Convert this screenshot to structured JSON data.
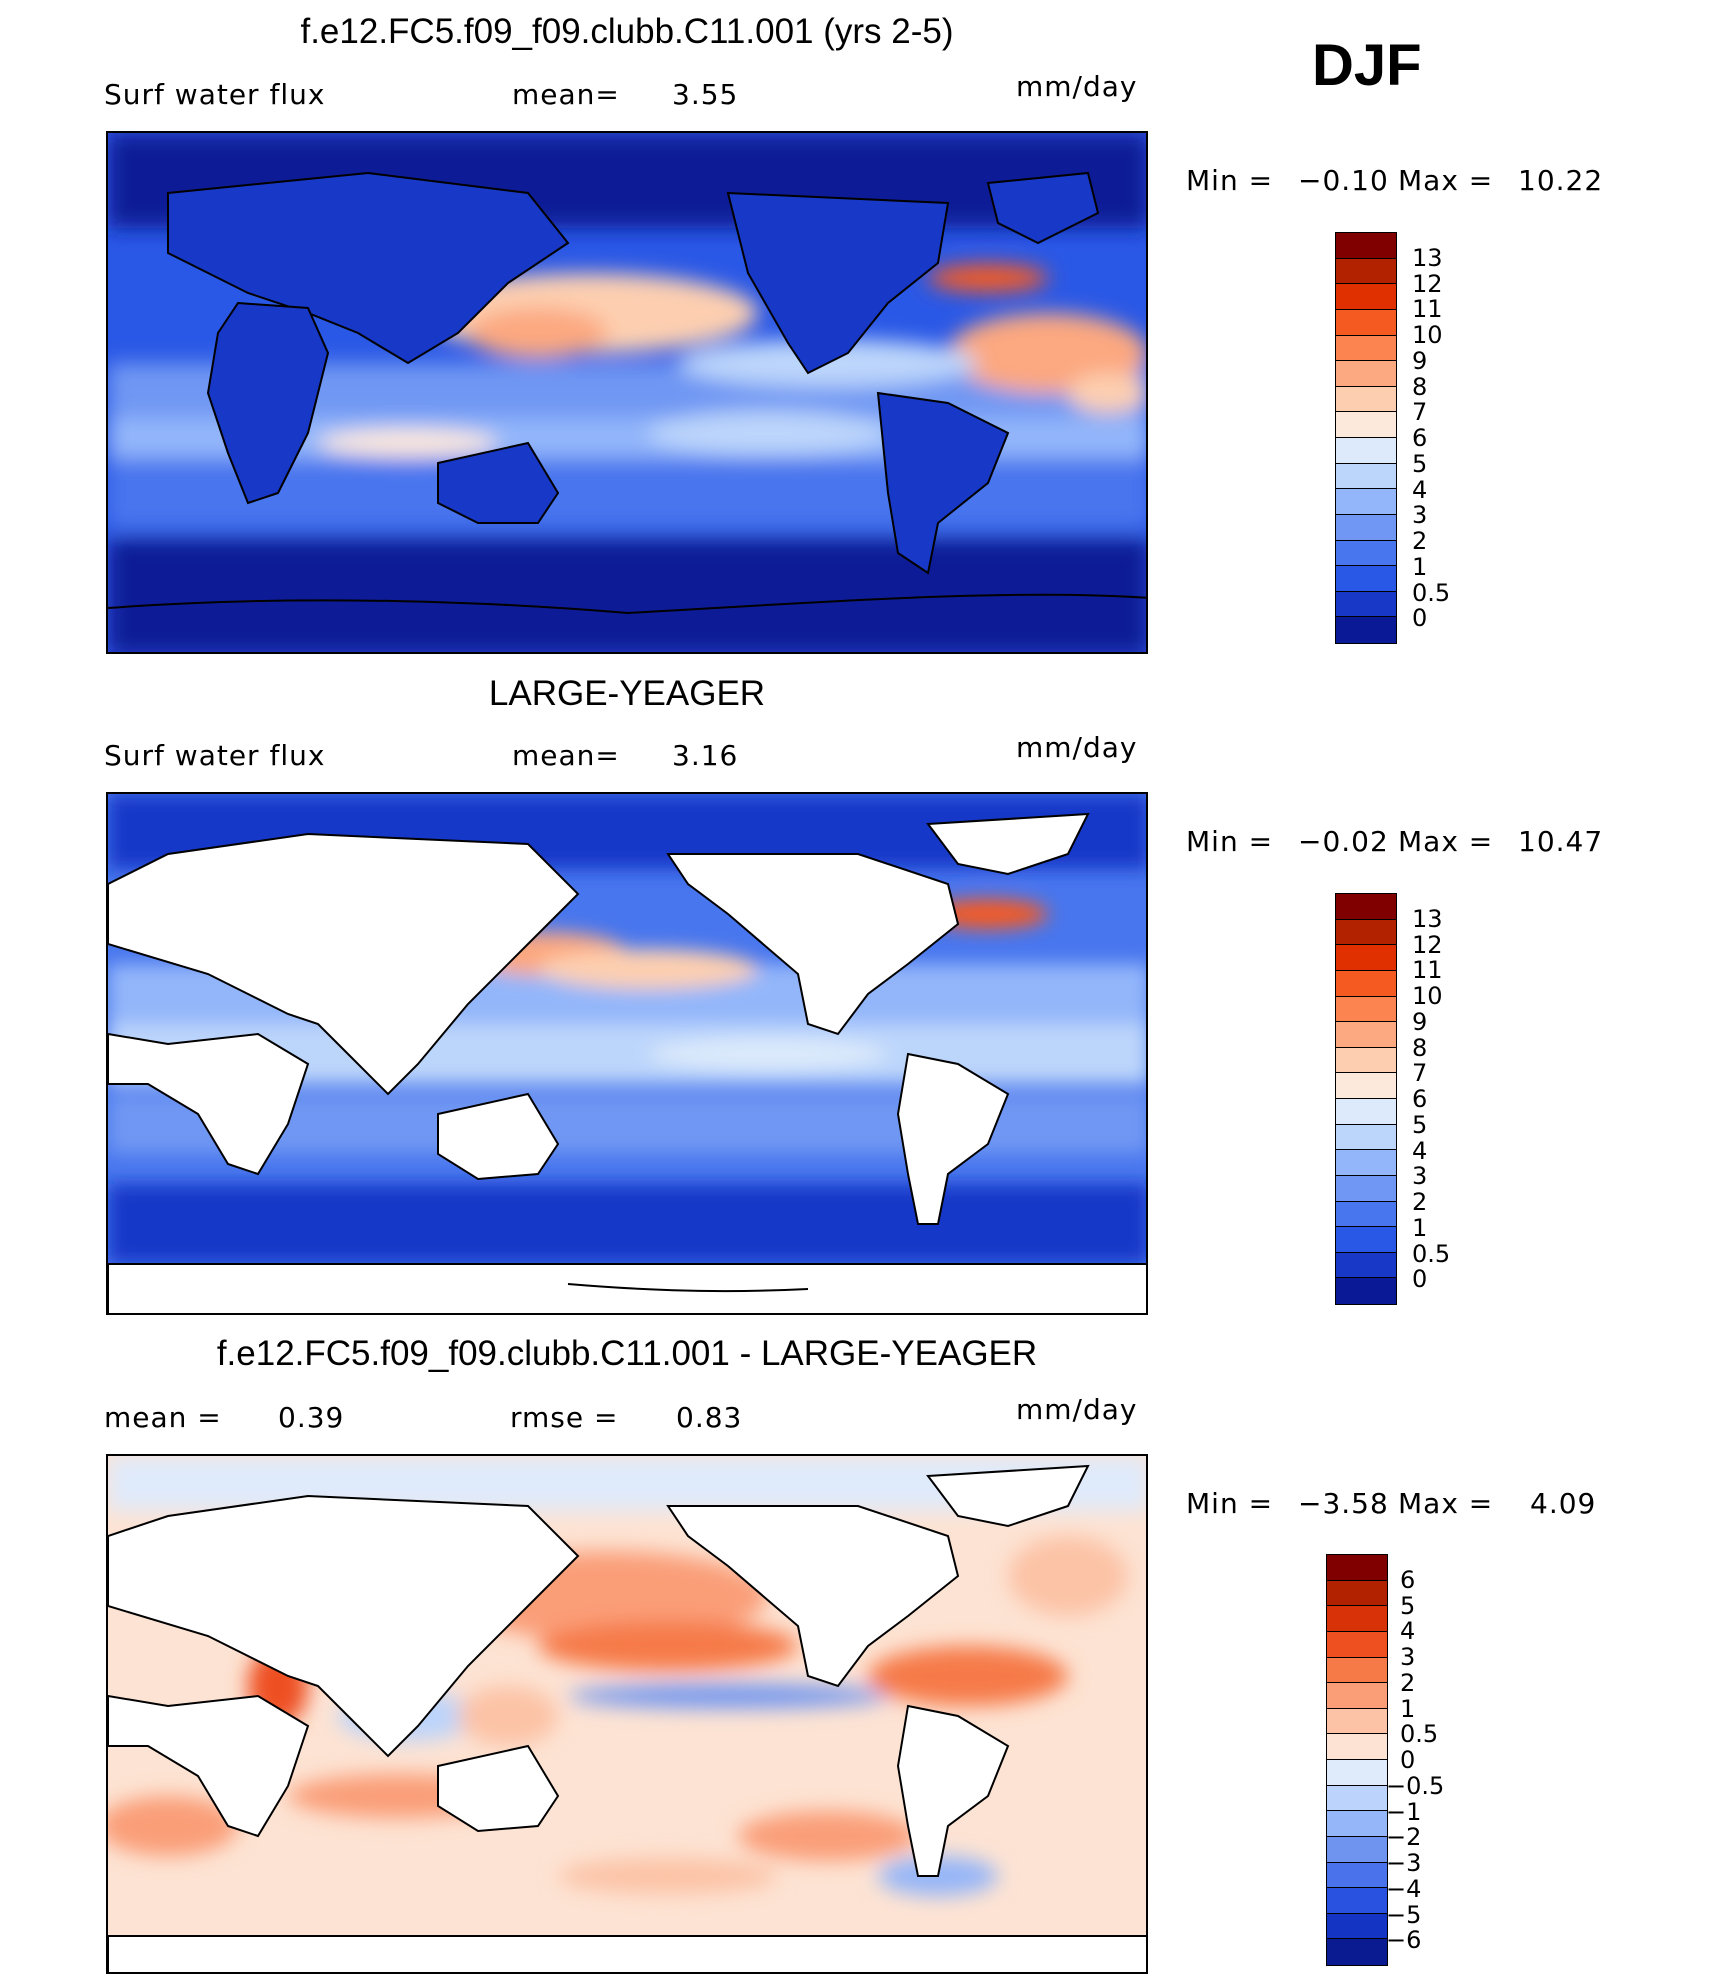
{
  "season": "DJF",
  "panels": [
    {
      "title": "f.e12.FC5.f09_f09.clubb.C11.001 (yrs 2-5)",
      "left_label": "Surf  water  flux",
      "mid_label": "mean=",
      "mid_value": "3.55",
      "units": "mm/day",
      "min_label": "Min  =",
      "min_value": "−0.10",
      "max_label": "Max  =",
      "max_value": "10.22",
      "colorbar_ticks": [
        "13",
        "12",
        "11",
        "10",
        "9",
        "8",
        "7",
        "6",
        "5",
        "4",
        "3",
        "2",
        "1",
        "0.5",
        "0"
      ],
      "colors": [
        "#800000",
        "#b22200",
        "#e03000",
        "#f55a20",
        "#fb8450",
        "#fca880",
        "#fdcfb0",
        "#fde9dc",
        "#dceafb",
        "#bcd5fb",
        "#93b6fa",
        "#6f97f3",
        "#4876ee",
        "#2a58e6",
        "#1838c8",
        "#0a1a96"
      ]
    },
    {
      "title": "LARGE-YEAGER",
      "left_label": "Surf  water  flux",
      "mid_label": "mean=",
      "mid_value": "3.16",
      "units": "mm/day",
      "min_label": "Min  =",
      "min_value": "−0.02",
      "max_label": "Max  =",
      "max_value": "10.47",
      "colorbar_ticks": [
        "13",
        "12",
        "11",
        "10",
        "9",
        "8",
        "7",
        "6",
        "5",
        "4",
        "3",
        "2",
        "1",
        "0.5",
        "0"
      ],
      "colors": [
        "#800000",
        "#b22200",
        "#e03000",
        "#f55a20",
        "#fb8450",
        "#fca880",
        "#fdcfb0",
        "#fde9dc",
        "#dceafb",
        "#bcd5fb",
        "#93b6fa",
        "#6f97f3",
        "#4876ee",
        "#2a58e6",
        "#1838c8",
        "#0a1a96"
      ]
    },
    {
      "title": "f.e12.FC5.f09_f09.clubb.C11.001 - LARGE-YEAGER",
      "left_label": "mean  =",
      "left_value": "0.39",
      "mid_label": "rmse  =",
      "mid_value": "0.83",
      "units": "mm/day",
      "min_label": "Min  =",
      "min_value": "−3.58",
      "max_label": "Max  =",
      "max_value": "4.09",
      "colorbar_ticks": [
        "6",
        "5",
        "4",
        "3",
        "2",
        "1",
        "0.5",
        "0",
        "−0.5",
        "−1",
        "−2",
        "−3",
        "−4",
        "−5",
        "−6"
      ],
      "colors": [
        "#800000",
        "#b22200",
        "#d83208",
        "#ee5020",
        "#f67a48",
        "#fa9e78",
        "#fcc3a6",
        "#fde3d3",
        "#dfeafb",
        "#bcd4fb",
        "#95b6f8",
        "#6e94f0",
        "#4a72ea",
        "#2a52e0",
        "#1434c4",
        "#0a1a90"
      ]
    }
  ]
}
